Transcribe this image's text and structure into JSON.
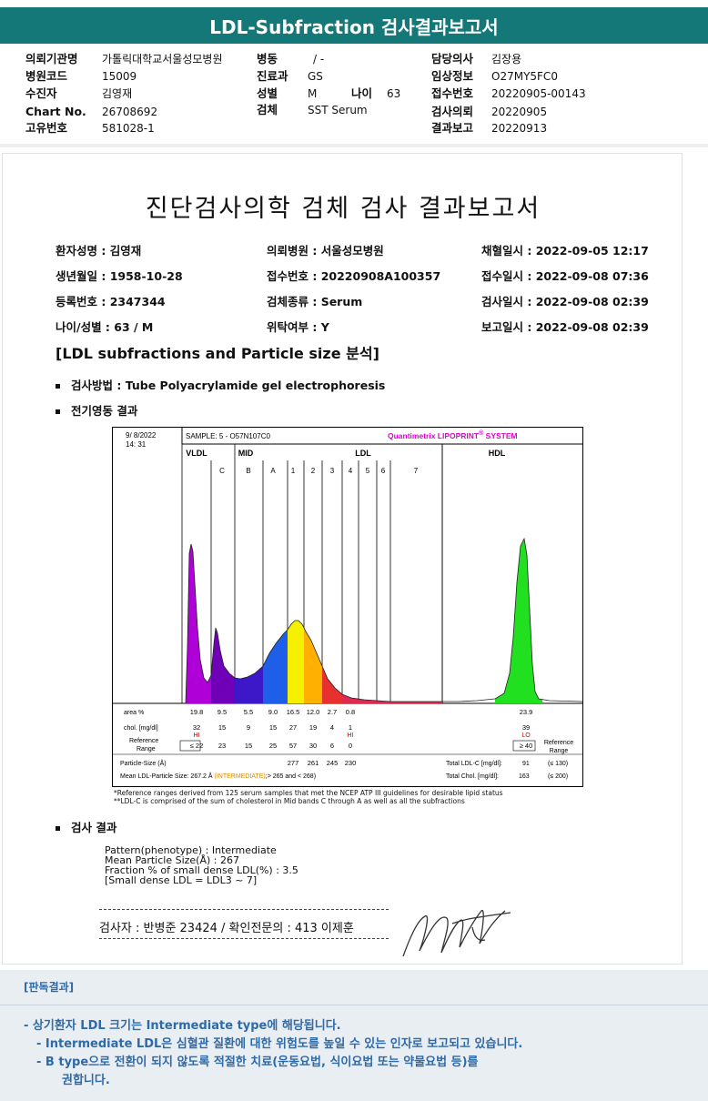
{
  "title": "LDL-Subfraction 검사결과보고서",
  "header": {
    "rows": [
      {
        "l1": "의뢰기관명",
        "v1": "가톨릭대학교서울성모병원",
        "l2": "병동",
        "v2": "/ -",
        "l3": "담당의사",
        "v3": "김장용"
      },
      {
        "l1": "병원코드",
        "v1": "15009",
        "l2": "진료과",
        "v2": "GS",
        "l3": "임상정보",
        "v3": "O27MY5FC0"
      },
      {
        "l1": "수진자",
        "v1": "김영재",
        "l2": "성별",
        "v2": "M",
        "l3": "접수번호",
        "v3": "20220905-00143"
      },
      {
        "l1": "Chart No.",
        "v1": "26708692",
        "l2": "검체",
        "v2": "SST Serum",
        "l3": "검사의뢰",
        "v3": "20220905"
      },
      {
        "l1": "고유번호",
        "v1": "581028-1",
        "l2": "",
        "v2": "",
        "l3": "결과보고",
        "v3": "20220913"
      }
    ],
    "age_label": "나이",
    "age_value": "63"
  },
  "report": {
    "title": "진단검사의학 검체 검사 결과보고서",
    "info_rows": [
      [
        "환자성명 : 김영재",
        "의뢰병원 : 서울성모병원",
        "채혈일시 : 2022-09-05 12:17"
      ],
      [
        "생년월일 : 1958-10-28",
        "접수번호 : 20220908A100357",
        "접수일시 : 2022-09-08 07:36"
      ],
      [
        "등록번호 : 2347344",
        "검체종류 : Serum",
        "검사일시 : 2022-09-08 02:39"
      ],
      [
        "나이/성별 : 63 / M",
        "위탁여부 : Y",
        "보고일시 : 2022-09-08 02:39"
      ]
    ],
    "section_title": "[LDL subfractions and Particle size 분석]",
    "method_label": "검사방법 : Tube Polyacrylamide gel electrophoresis",
    "electro_label": "전기영동 결과",
    "result_label": "검사 결과",
    "chart_notes": [
      "*Reference ranges derived from 125 serum samples that met the NCEP ATP III guidelines for desirable lipid status",
      "**LDL-C is comprised of the sum of cholesterol in Mid bands C through A as well as all the subfractions"
    ],
    "results": [
      "Pattern(phenotype) : Intermediate",
      "Mean Particle Size(Å) : 267",
      "Fraction % of small dense LDL(%) : 3.5",
      "[Small dense LDL = LDL3 ~ 7]"
    ],
    "signature_line": "검사자 : 반병준  23424  /  확인전문의 : 413  이제훈"
  },
  "chart_data": {
    "type": "area",
    "date": "9/ 8/2022",
    "time": "14: 31",
    "sample": "SAMPLE:   5 - O57N107C0",
    "brand": "Quantimetrix LIPOPRINT",
    "brand_reg": "®",
    "brand_tail": " SYSTEM",
    "groups": [
      "VLDL",
      "MID",
      "LDL",
      "HDL"
    ],
    "bands": [
      "C",
      "B",
      "A",
      "1",
      "2",
      "3",
      "4",
      "5",
      "6",
      "7"
    ],
    "fractions": [
      "VLDL",
      "C",
      "B",
      "A",
      "1",
      "2",
      "3",
      "4",
      "5",
      "6",
      "7",
      "HDL"
    ],
    "area_label": "area %",
    "area_values": [
      "19.8",
      "9.5",
      "5.5",
      "9.0",
      "16.5",
      "12.0",
      "2.7",
      "0.8",
      "",
      "",
      "",
      "23.9"
    ],
    "chol_label": "chol. [mg/dl]",
    "chol_values": [
      "32",
      "15",
      "9",
      "15",
      "27",
      "19",
      "4",
      "1",
      "",
      "",
      "",
      "39"
    ],
    "flags": {
      "VLDL": "HI",
      "4": "HI",
      "HDL": "LO"
    },
    "ref_label": "Reference Range",
    "ref_values": [
      "≤ 22",
      "23",
      "15",
      "25",
      "57",
      "30",
      "6",
      "0",
      "",
      "",
      "",
      "≥ 40"
    ],
    "ref_range_right": "Reference Range",
    "particle_size_label": "Particle-Size (Å)",
    "particle_sizes": {
      "1": "277",
      "2": "261",
      "3": "245",
      "4": "230"
    },
    "mean_ldl_label": "Mean LDL-Particle Size:  267.2 Å",
    "mean_ldl_class": "(INTERMEDIATE)",
    "mean_ldl_range": ";> 265 and < 268)",
    "total_ldl_label": "Total LDL-C [mg/dl]:",
    "total_ldl_value": "91",
    "total_ldl_range": "(≤ 130)",
    "total_chol_label": "Total Chol. [mg/dl]:",
    "total_chol_value": "163",
    "total_chol_range": "(≤ 200)",
    "colors": {
      "VLDL": "#b000d8",
      "C": "#6f00b8",
      "B": "#3c18c8",
      "A": "#1e5ee8",
      "1": "#f4f000",
      "2": "#ffb000",
      "3": "#e83030",
      "4": "#e02850",
      "5": "#e02850",
      "6": "#e02850",
      "7": "#e02850",
      "HDL": "#20e020"
    }
  },
  "footer": {
    "heading": "[판독결과]",
    "lines": [
      "-  상기환자 LDL 크기는 Intermediate type에 해당됩니다.",
      "-  Intermediate LDL은 심혈관 질환에 대한 위험도를 높일 수 있는 인자로 보고되고 있습니다.",
      "-  B type으로 전환이 되지 않도록 적절한 치료(운동요법, 식이요법 또는 약물요법 등)를",
      "권합니다."
    ]
  }
}
